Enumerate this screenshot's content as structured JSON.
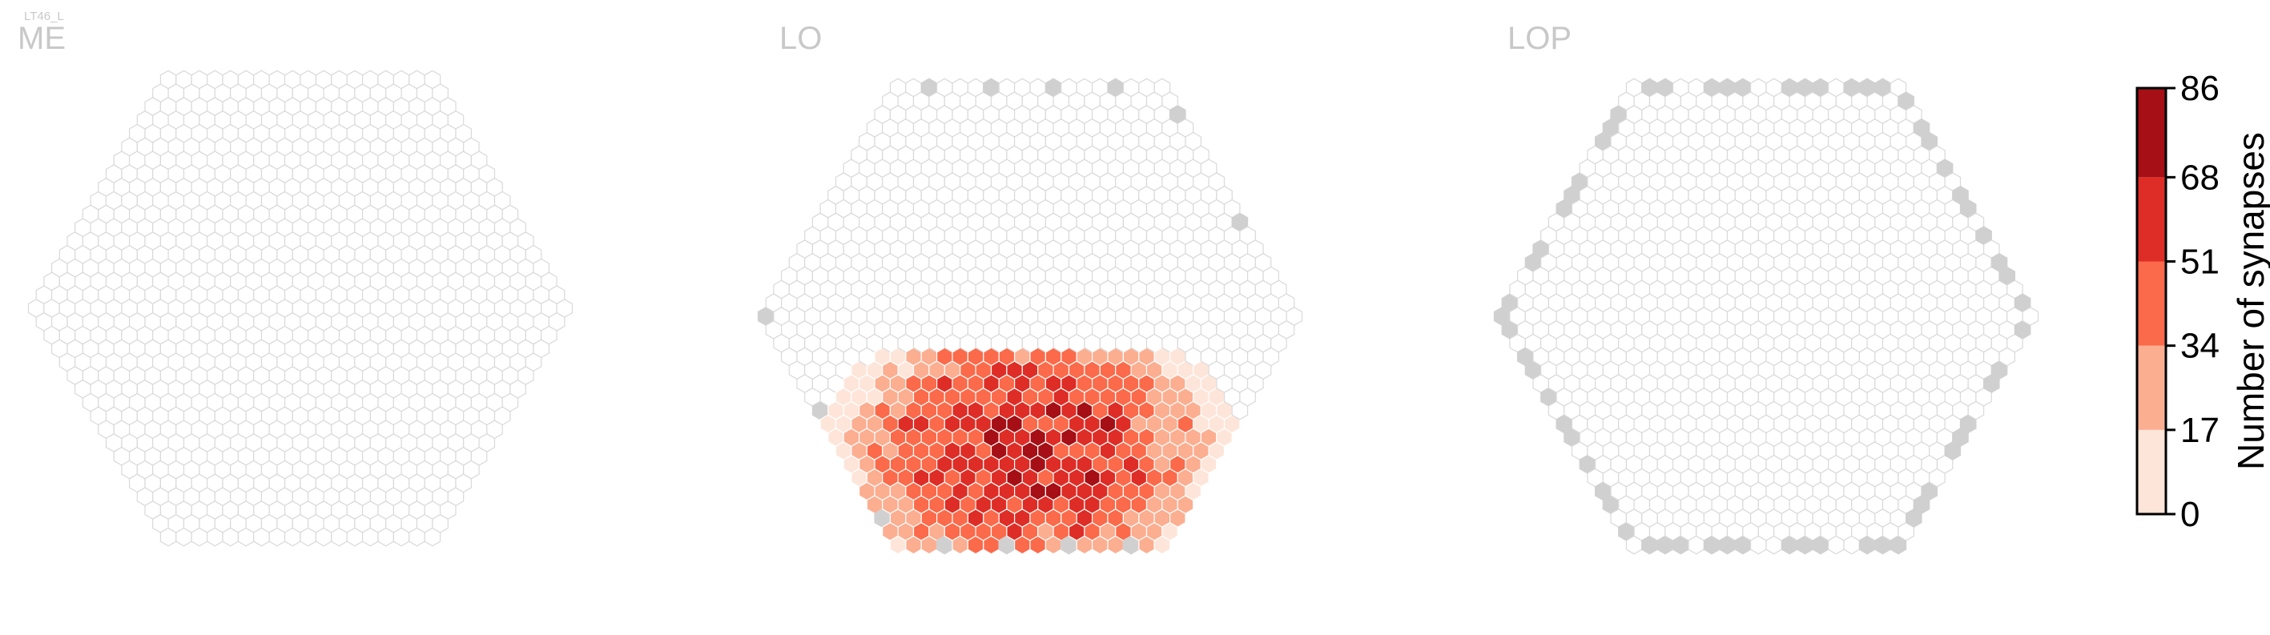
{
  "neuron_label": "LT46_L",
  "panels": [
    {
      "id": "me",
      "title": "ME"
    },
    {
      "id": "lo",
      "title": "LO"
    },
    {
      "id": "lop",
      "title": "LOP"
    }
  ],
  "colors": {
    "empty_hex_stroke": "#d9d9d9",
    "empty_hex_fill": "#ffffff",
    "outside_column_fill": "#d0d0d0",
    "panel_title": "#c8c8c8",
    "scale": [
      "#fee5d9",
      "#fcae91",
      "#fb6a4a",
      "#de2d26",
      "#a50f15"
    ]
  },
  "chart_data": {
    "type": "heatmap",
    "title": "",
    "colorbar": {
      "label": "Number of synapses",
      "ticks": [
        0,
        17,
        34,
        51,
        68,
        86
      ],
      "bins": [
        [
          0,
          17
        ],
        [
          17,
          34
        ],
        [
          34,
          51
        ],
        [
          51,
          68
        ],
        [
          68,
          86
        ]
      ]
    },
    "hex_grid_radius_columns": 17,
    "panels": [
      {
        "name": "ME",
        "synapse_count_range": [
          0,
          0
        ],
        "outside_columns": 0
      },
      {
        "name": "LO",
        "synapse_count_range": [
          0,
          86
        ],
        "outside_columns": 13
      },
      {
        "name": "LOP",
        "synapse_count_range": [
          0,
          0
        ],
        "outside_columns": 62
      }
    ]
  }
}
